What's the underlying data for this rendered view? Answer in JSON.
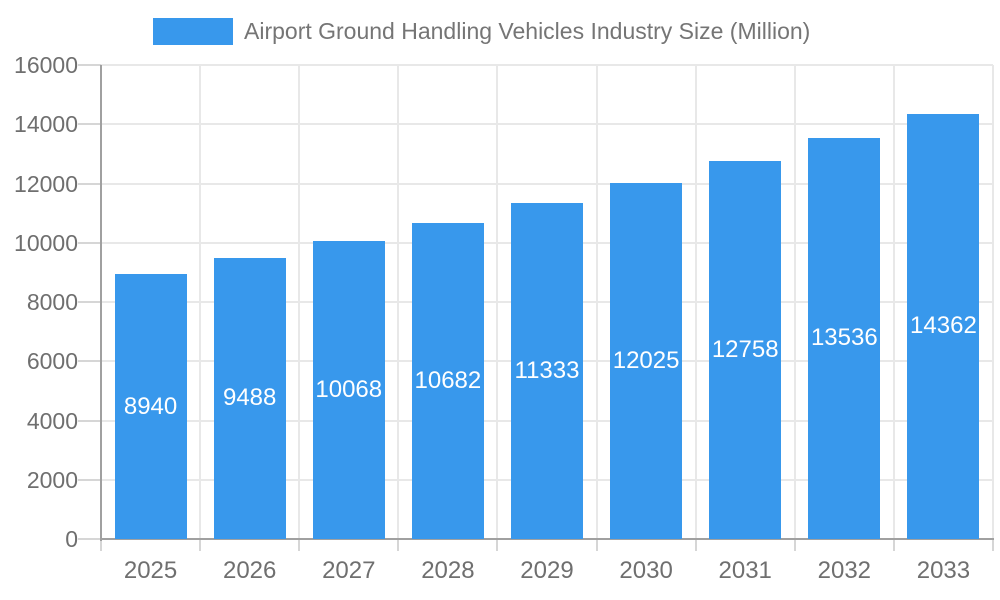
{
  "chart_data": {
    "type": "bar",
    "title": "Airport Ground Handling Vehicles Industry Size (Million)",
    "categories": [
      "2025",
      "2026",
      "2027",
      "2028",
      "2029",
      "2030",
      "2031",
      "2032",
      "2033"
    ],
    "values": [
      8940,
      9488,
      10068,
      10682,
      11333,
      12025,
      12758,
      13536,
      14362
    ],
    "xlabel": "",
    "ylabel": "",
    "ylim": [
      0,
      16000
    ],
    "yticks": [
      0,
      2000,
      4000,
      6000,
      8000,
      10000,
      12000,
      14000,
      16000
    ],
    "grid": true,
    "legend_position": "top",
    "bar_label_position": "inside-center",
    "colors": {
      "bar": "#3898EC",
      "bar_label": "#ffffff",
      "axis_line": "#a0a0a0",
      "gridline": "#e8e8e8",
      "tick_mark": "#d6d6d6",
      "tick_label": "#6f6f6f",
      "legend_text": "#757575",
      "background": "#ffffff"
    }
  }
}
